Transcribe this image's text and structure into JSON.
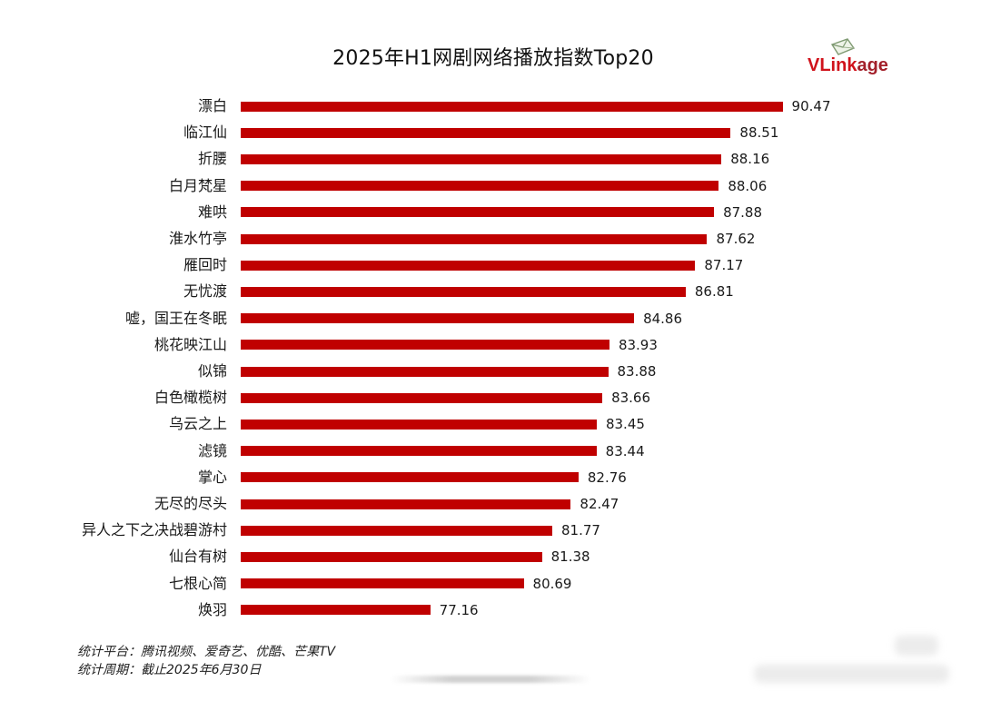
{
  "chart_data": {
    "type": "bar",
    "orientation": "horizontal",
    "title": "2025年H1网剧网络播放指数Top20",
    "xlabel": "",
    "ylabel": "",
    "xlim": [
      70,
      91
    ],
    "grid": false,
    "categories": [
      "漂白",
      "临江仙",
      "折腰",
      "白月梵星",
      "难哄",
      "淮水竹亭",
      "雁回时",
      "无忧渡",
      "嘘，国王在冬眠",
      "桃花映江山",
      "似锦",
      "白色橄榄树",
      "乌云之上",
      "滤镜",
      "掌心",
      "无尽的尽头",
      "异人之下之决战碧游村",
      "仙台有树",
      "七根心简",
      "焕羽"
    ],
    "values": [
      90.47,
      88.51,
      88.16,
      88.06,
      87.88,
      87.62,
      87.17,
      86.81,
      84.86,
      83.93,
      83.88,
      83.66,
      83.45,
      83.44,
      82.76,
      82.47,
      81.77,
      81.38,
      80.69,
      77.16
    ]
  },
  "logo": {
    "main": "VLink",
    "suffix": "age"
  },
  "footnotes": {
    "platform": "统计平台：腾讯视频、爱奇艺、优酷、芒果TV",
    "period": "统计周期：截止2025年6月30日"
  },
  "colors": {
    "bar": "#c00000",
    "logo_red": "#d0121b",
    "text": "#1a1a1a"
  }
}
